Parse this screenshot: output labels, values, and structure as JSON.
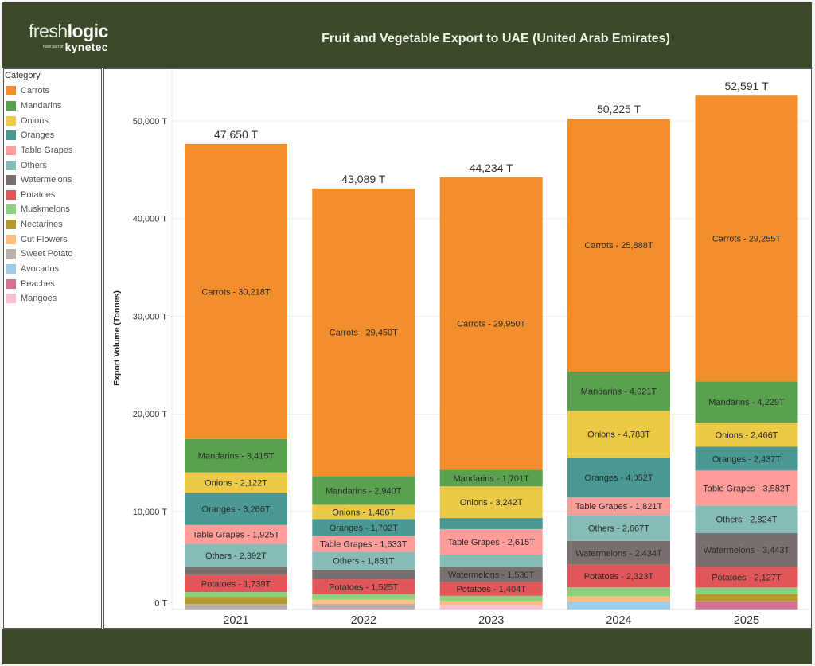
{
  "header": {
    "logo_fresh": "fresh",
    "logo_logic": "logic",
    "logo_now_part_of": "Now part of",
    "logo_kynetec": "kynetec",
    "title": "Fruit and Vegetable Export to UAE (United Arab Emirates)"
  },
  "colors": {
    "header_bg": "#3b4a28"
  },
  "chart_data": {
    "type": "bar",
    "stacked": true,
    "title": "Fruit and Vegetable Export to UAE (United Arab Emirates)",
    "xlabel": "",
    "ylabel": "Export Volume (Tonnes)",
    "ylim": [
      0,
      55300
    ],
    "grid": true,
    "yticks": [
      0,
      10000,
      20000,
      30000,
      40000,
      50000
    ],
    "ytick_labels": [
      "0 T",
      "10,000 T",
      "20,000 T",
      "30,000 T",
      "40,000 T",
      "50,000 T"
    ],
    "categories": [
      "2021",
      "2022",
      "2023",
      "2024",
      "2025"
    ],
    "totals": [
      47650,
      43089,
      44234,
      50225,
      52591
    ],
    "total_labels": [
      "47,650 T",
      "43,089 T",
      "44,234 T",
      "50,225 T",
      "52,591 T"
    ],
    "legend": {
      "title": "Category",
      "position": "left"
    },
    "series": [
      {
        "name": "Carrots",
        "color": "#F28E2B",
        "values": [
          30218,
          29450,
          29950,
          25888,
          29255
        ],
        "labels": [
          "Carrots - 30,218T",
          "Carrots - 29,450T",
          "Carrots - 29,950T",
          "Carrots - 25,888T",
          "Carrots - 29,255T"
        ]
      },
      {
        "name": "Mandarins",
        "color": "#59A14F",
        "values": [
          3415,
          2940,
          1701,
          4021,
          4229
        ],
        "labels": [
          "Mandarins - 3,415T",
          "Mandarins - 2,940T",
          "Mandarins - 1,701T",
          "Mandarins - 4,021T",
          "Mandarins - 4,229T"
        ]
      },
      {
        "name": "Onions",
        "color": "#EDC948",
        "values": [
          2122,
          1466,
          3242,
          4783,
          2466
        ],
        "labels": [
          "Onions - 2,122T",
          "Onions - 1,466T",
          "Onions - 3,242T",
          "Onions - 4,783T",
          "Onions - 2,466T"
        ]
      },
      {
        "name": "Oranges",
        "color": "#499894",
        "values": [
          3266,
          1702,
          1130,
          4052,
          2437
        ],
        "labels": [
          "Oranges - 3,266T",
          "Oranges - 1,702T",
          null,
          "Oranges - 4,052T",
          "Oranges - 2,437T"
        ]
      },
      {
        "name": "Table Grapes",
        "color": "#FF9D9A",
        "values": [
          1925,
          1633,
          2615,
          1821,
          3582
        ],
        "labels": [
          "Table Grapes - 1,925T",
          "Table Grapes - 1,633T",
          "Table Grapes - 2,615T",
          "Table Grapes - 1,821T",
          "Table Grapes - 3,582T"
        ]
      },
      {
        "name": "Others",
        "color": "#86BCB6",
        "values": [
          2392,
          1831,
          1290,
          2667,
          2824
        ],
        "labels": [
          "Others - 2,392T",
          "Others - 1,831T",
          null,
          "Others - 2,667T",
          "Others - 2,824T"
        ]
      },
      {
        "name": "Watermelons",
        "color": "#79706E",
        "values": [
          810,
          1000,
          1530,
          2434,
          3443
        ],
        "labels": [
          null,
          null,
          "Watermelons - 1,530T",
          "Watermelons - 2,434T",
          "Watermelons - 3,443T"
        ]
      },
      {
        "name": "Potatoes",
        "color": "#E15759",
        "values": [
          1739,
          1525,
          1404,
          2323,
          2127
        ],
        "labels": [
          "Potatoes - 1,739T",
          "Potatoes - 1,525T",
          "Potatoes - 1,404T",
          "Potatoes - 2,323T",
          "Potatoes - 2,127T"
        ]
      },
      {
        "name": "Muskmelons",
        "color": "#8CD17D",
        "values": [
          490,
          550,
          510,
          910,
          680
        ],
        "labels": [
          null,
          null,
          null,
          null,
          null
        ]
      },
      {
        "name": "Nectarines",
        "color": "#B6992D",
        "values": [
          730,
          0,
          0,
          0,
          734
        ],
        "labels": [
          null,
          null,
          null,
          null,
          null
        ]
      },
      {
        "name": "Cut Flowers",
        "color": "#FFBE7D",
        "values": [
          0,
          420,
          430,
          540,
          0
        ],
        "labels": [
          null,
          null,
          null,
          null,
          null
        ]
      },
      {
        "name": "Sweet Potato",
        "color": "#BAB0AC",
        "values": [
          543,
          572,
          0,
          0,
          0
        ],
        "labels": [
          null,
          null,
          null,
          null,
          null
        ]
      },
      {
        "name": "Avocados",
        "color": "#A0CBE8",
        "values": [
          0,
          0,
          0,
          786,
          0
        ],
        "labels": [
          null,
          null,
          null,
          null,
          null
        ]
      },
      {
        "name": "Peaches",
        "color": "#D37295",
        "values": [
          0,
          0,
          0,
          0,
          814
        ],
        "labels": [
          null,
          null,
          null,
          null,
          null
        ]
      },
      {
        "name": "Mangoes",
        "color": "#FABFD2",
        "values": [
          0,
          0,
          432,
          0,
          0
        ],
        "labels": [
          null,
          null,
          null,
          null,
          null
        ]
      }
    ]
  }
}
